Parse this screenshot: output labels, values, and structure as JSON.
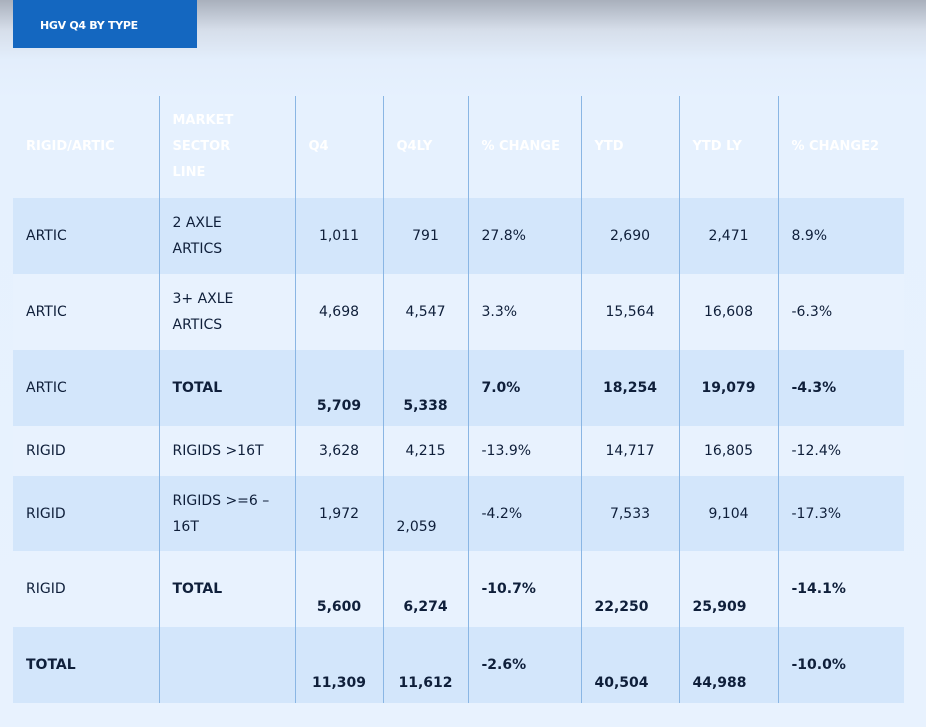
{
  "tab": {
    "label": "HGV Q4 BY TYPE"
  },
  "columns": [
    "RIGID/ARTIC",
    "MARKET SECTOR LINE",
    "Q4",
    "Q4LY",
    "% CHANGE",
    "YTD",
    "YTD LY",
    "% CHANGE2"
  ],
  "rows": [
    [
      "ARTIC",
      "2 AXLE ARTICS",
      "1,011",
      "791",
      "27.8%",
      "2,690",
      "2,471",
      "8.9%"
    ],
    [
      "ARTIC",
      "3+ AXLE ARTICS",
      "4,698",
      "4,547",
      "3.3%",
      "15,564",
      "16,608",
      "-6.3%"
    ],
    [
      "ARTIC",
      "TOTAL",
      "5,709",
      "5,338",
      "7.0%",
      "18,254",
      "19,079",
      "-4.3%"
    ],
    [
      "RIGID",
      "RIGIDS >16T",
      "3,628",
      "4,215",
      "-13.9%",
      "14,717",
      "16,805",
      "-12.4%"
    ],
    [
      "RIGID",
      "RIGIDS >=6 – 16T",
      "1,972",
      "2,059",
      "-4.2%",
      "7,533",
      "9,104",
      "-17.3%"
    ],
    [
      "RIGID",
      "TOTAL",
      "5,600",
      "6,274",
      "-10.7%",
      "22,250",
      "25,909",
      "-14.1%"
    ],
    [
      "TOTAL",
      "",
      "11,309",
      "11,612",
      "-2.6%",
      "40,504",
      "44,988",
      "-10.0%"
    ]
  ],
  "colors": {
    "accent": "#1467c0",
    "row_shade": "#d3e6fb",
    "background": "#e8f2fe",
    "divider": "#8ab6e4"
  }
}
